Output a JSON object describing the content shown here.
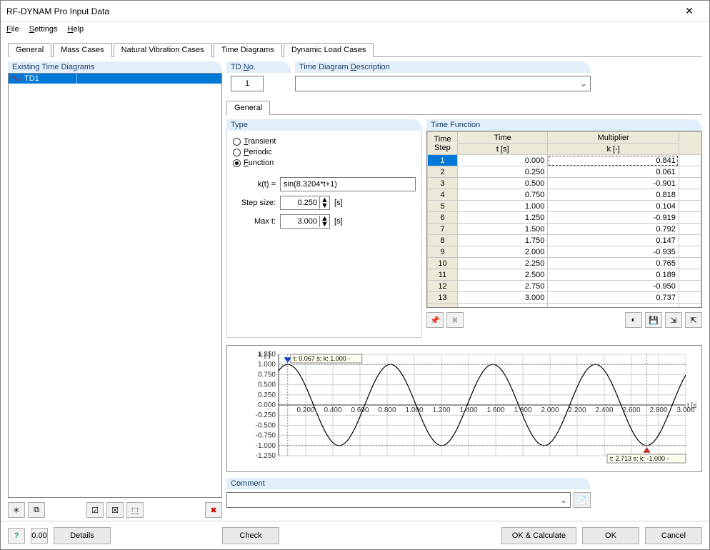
{
  "window": {
    "title": "RF-DYNAM Pro Input Data"
  },
  "menu": {
    "file": "File",
    "settings": "Settings",
    "help": "Help"
  },
  "tabs": {
    "general": "General",
    "mass": "Mass Cases",
    "nvc": "Natural Vibration Cases",
    "td": "Time Diagrams",
    "dlc": "Dynamic Load Cases"
  },
  "left": {
    "title": "Existing Time Diagrams",
    "item_label": "TD1"
  },
  "tdno": {
    "title": "TD No.",
    "value": "1"
  },
  "desc": {
    "title": "Time Diagram Description",
    "value": ""
  },
  "subtab_general": "General",
  "type": {
    "title": "Type",
    "transient": "Transient",
    "periodic": "Periodic",
    "function": "Function",
    "selected": "function",
    "kt_label": "k(t) =",
    "kt_value": "sin(8.3204*t+1)",
    "step_label": "Step size:",
    "step_value": "0.250",
    "step_unit": "[s]",
    "maxt_label": "Max t:",
    "maxt_value": "3.000",
    "maxt_unit": "[s]"
  },
  "time_function": {
    "title": "Time Function",
    "col_step": "Time\nStep",
    "col_time_a": "Time",
    "col_time_b": "t [s]",
    "col_mult_a": "Multiplier",
    "col_mult_b": "k [-]",
    "rows": [
      {
        "n": "1",
        "t": "0.000",
        "k": "0.841"
      },
      {
        "n": "2",
        "t": "0.250",
        "k": "0.061"
      },
      {
        "n": "3",
        "t": "0.500",
        "k": "-0.901"
      },
      {
        "n": "4",
        "t": "0.750",
        "k": "0.818"
      },
      {
        "n": "5",
        "t": "1.000",
        "k": "0.104"
      },
      {
        "n": "6",
        "t": "1.250",
        "k": "-0.919"
      },
      {
        "n": "7",
        "t": "1.500",
        "k": "0.792"
      },
      {
        "n": "8",
        "t": "1.750",
        "k": "0.147"
      },
      {
        "n": "9",
        "t": "2.000",
        "k": "-0.935"
      },
      {
        "n": "10",
        "t": "2.250",
        "k": "0.765"
      },
      {
        "n": "11",
        "t": "2.500",
        "k": "0.189"
      },
      {
        "n": "12",
        "t": "2.750",
        "k": "-0.950"
      },
      {
        "n": "13",
        "t": "3.000",
        "k": "0.737"
      }
    ]
  },
  "chart": {
    "ylabel": "k [-]",
    "xlabel": "t [s]",
    "xmin": 0,
    "xmax": 3.0,
    "xstep": 0.2,
    "ymin": -1.25,
    "ymax": 1.25,
    "ystep": 0.25,
    "yticks": [
      "1.250",
      "1.000",
      "0.750",
      "0.500",
      "0.250",
      "0.000",
      "-0.250",
      "-0.500",
      "-0.750",
      "-1.000",
      "-1.250"
    ],
    "xticks": [
      "0.200",
      "0.400",
      "0.600",
      "0.800",
      "1.000",
      "1.200",
      "1.400",
      "1.600",
      "1.800",
      "2.000",
      "2.200",
      "2.400",
      "2.600",
      "2.800",
      "3.000"
    ],
    "curve_freq": 8.3204,
    "curve_phase": 1.0,
    "marker_top": "t: 0.067 s; k: 1.000 -",
    "marker_bot": "t: 2.713 s; k: -1.000 -",
    "bg": "#ffffff",
    "grid": "#d8d8d8",
    "line": "#000000",
    "marker_top_color": "#0033cc",
    "marker_bot_color": "#cc2222"
  },
  "comment": {
    "title": "Comment",
    "value": ""
  },
  "buttons": {
    "details": "Details",
    "check": "Check",
    "okcalc": "OK & Calculate",
    "ok": "OK",
    "cancel": "Cancel"
  }
}
